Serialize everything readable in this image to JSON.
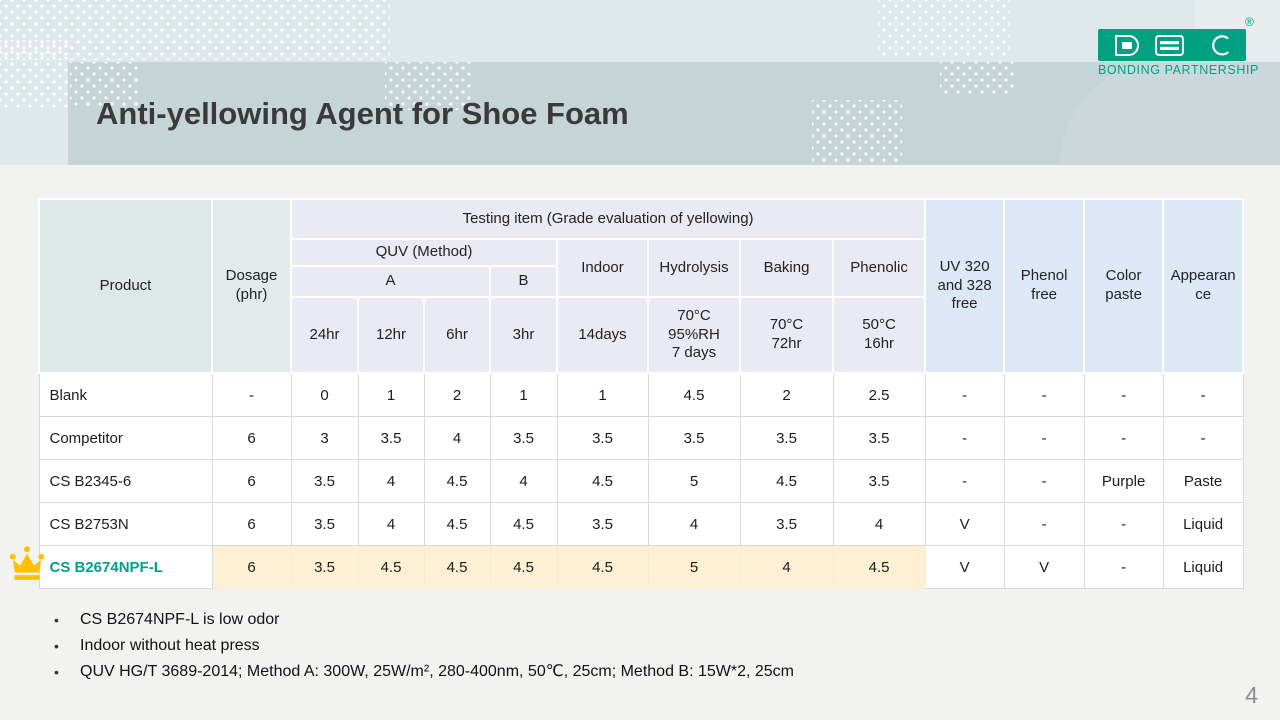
{
  "slide": {
    "title": "Anti-yellowing Agent for Shoe Foam",
    "page_number": "4"
  },
  "logo": {
    "letters": "DBC",
    "tagline": "BONDING PARTNERSHIP",
    "registered_mark": "®"
  },
  "table": {
    "header": {
      "product": "Product",
      "dosage": "Dosage\n(phr)",
      "testing_item": "Testing item (Grade evaluation of yellowing)",
      "quv_method": "QUV (Method)",
      "method_a": "A",
      "method_b": "B",
      "indoor": "Indoor",
      "hydrolysis": "Hydrolysis",
      "baking": "Baking",
      "phenolic": "Phenolic",
      "quv_24hr": "24hr",
      "quv_12hr": "12hr",
      "quv_6hr": "6hr",
      "quv_3hr": "3hr",
      "indoor_condition": "14days",
      "hydrolysis_condition": "70°C\n95%RH\n7 days",
      "baking_condition": "70°C\n72hr",
      "phenolic_condition": "50°C\n16hr",
      "uv_free": "UV 320\nand 328\nfree",
      "phenol_free": "Phenol\nfree",
      "color_paste": "Color\npaste",
      "appearance": "Appearance"
    },
    "rows": [
      {
        "product": "Blank",
        "highlight": false,
        "values": [
          "-",
          "0",
          "1",
          "2",
          "1",
          "1",
          "4.5",
          "2",
          "2.5",
          "-",
          "-",
          "-",
          "-"
        ]
      },
      {
        "product": "Competitor",
        "highlight": false,
        "values": [
          "6",
          "3",
          "3.5",
          "4",
          "3.5",
          "3.5",
          "3.5",
          "3.5",
          "3.5",
          "-",
          "-",
          "-",
          "-"
        ]
      },
      {
        "product": "CS B2345-6",
        "highlight": false,
        "values": [
          "6",
          "3.5",
          "4",
          "4.5",
          "4",
          "4.5",
          "5",
          "4.5",
          "3.5",
          "-",
          "-",
          "Purple",
          "Paste"
        ]
      },
      {
        "product": "CS B2753N",
        "highlight": false,
        "values": [
          "6",
          "3.5",
          "4",
          "4.5",
          "4.5",
          "3.5",
          "4",
          "3.5",
          "4",
          "V",
          "-",
          "-",
          "Liquid"
        ]
      },
      {
        "product": "CS B2674NPF-L",
        "highlight": true,
        "values": [
          "6",
          "3.5",
          "4.5",
          "4.5",
          "4.5",
          "4.5",
          "5",
          "4",
          "4.5",
          "V",
          "V",
          "-",
          "Liquid"
        ]
      }
    ]
  },
  "notes": [
    "CS B2674NPF-L is low odor",
    "Indoor without heat press",
    "QUV HG/T 3689-2014; Method A: 300W, 25W/m², 280-400nm, 50℃, 25cm; Method B: 15W*2, 25cm"
  ],
  "colors": {
    "accent_green": "#00a183",
    "top_bg": "#dfe8ea",
    "band": "#c5d4d7",
    "header_teal": "#dee8e8",
    "header_teal2": "#e2eaea",
    "header_lavender": "#e9eaf3",
    "header_blue": "#dce8f6",
    "highlight_row": "#fdf0d3",
    "product_highlight_text": "#00a189",
    "crown_gold": "#ffc000"
  }
}
